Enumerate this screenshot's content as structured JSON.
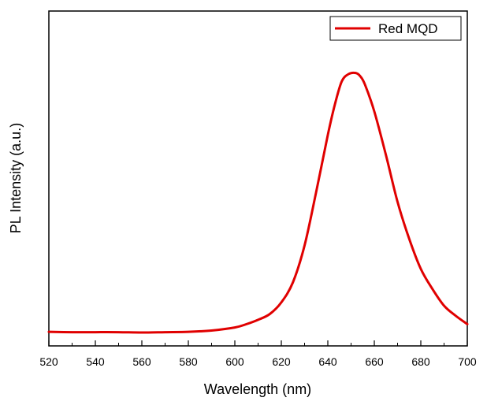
{
  "chart_data": {
    "type": "line",
    "title": "",
    "xlabel": "Wavelength (nm)",
    "ylabel": "PL Intensity (a.u.)",
    "xlim": [
      520,
      700
    ],
    "ylim": [
      0,
      1
    ],
    "xticks": [
      520,
      540,
      560,
      580,
      600,
      620,
      640,
      660,
      680,
      700
    ],
    "x_tick_labels": [
      "520",
      "540",
      "560",
      "580",
      "600",
      "620",
      "640",
      "660",
      "680",
      "700"
    ],
    "y_tick_labels_shown": false,
    "grid": false,
    "legend": {
      "placement": "top-right",
      "entries": [
        "Red MQD"
      ]
    },
    "series": [
      {
        "name": "Red MQD",
        "color": "#e00000",
        "x": [
          520,
          530,
          540,
          550,
          560,
          570,
          580,
          590,
          600,
          605,
          610,
          615,
          620,
          625,
          630,
          635,
          640,
          643,
          646,
          649,
          652,
          654,
          656,
          660,
          665,
          670,
          675,
          680,
          685,
          690,
          695,
          700
        ],
        "y": [
          0.042,
          0.041,
          0.041,
          0.041,
          0.04,
          0.041,
          0.042,
          0.046,
          0.055,
          0.065,
          0.078,
          0.095,
          0.13,
          0.19,
          0.3,
          0.46,
          0.63,
          0.72,
          0.79,
          0.812,
          0.815,
          0.805,
          0.78,
          0.7,
          0.57,
          0.43,
          0.32,
          0.23,
          0.17,
          0.12,
          0.09,
          0.065
        ]
      }
    ]
  }
}
